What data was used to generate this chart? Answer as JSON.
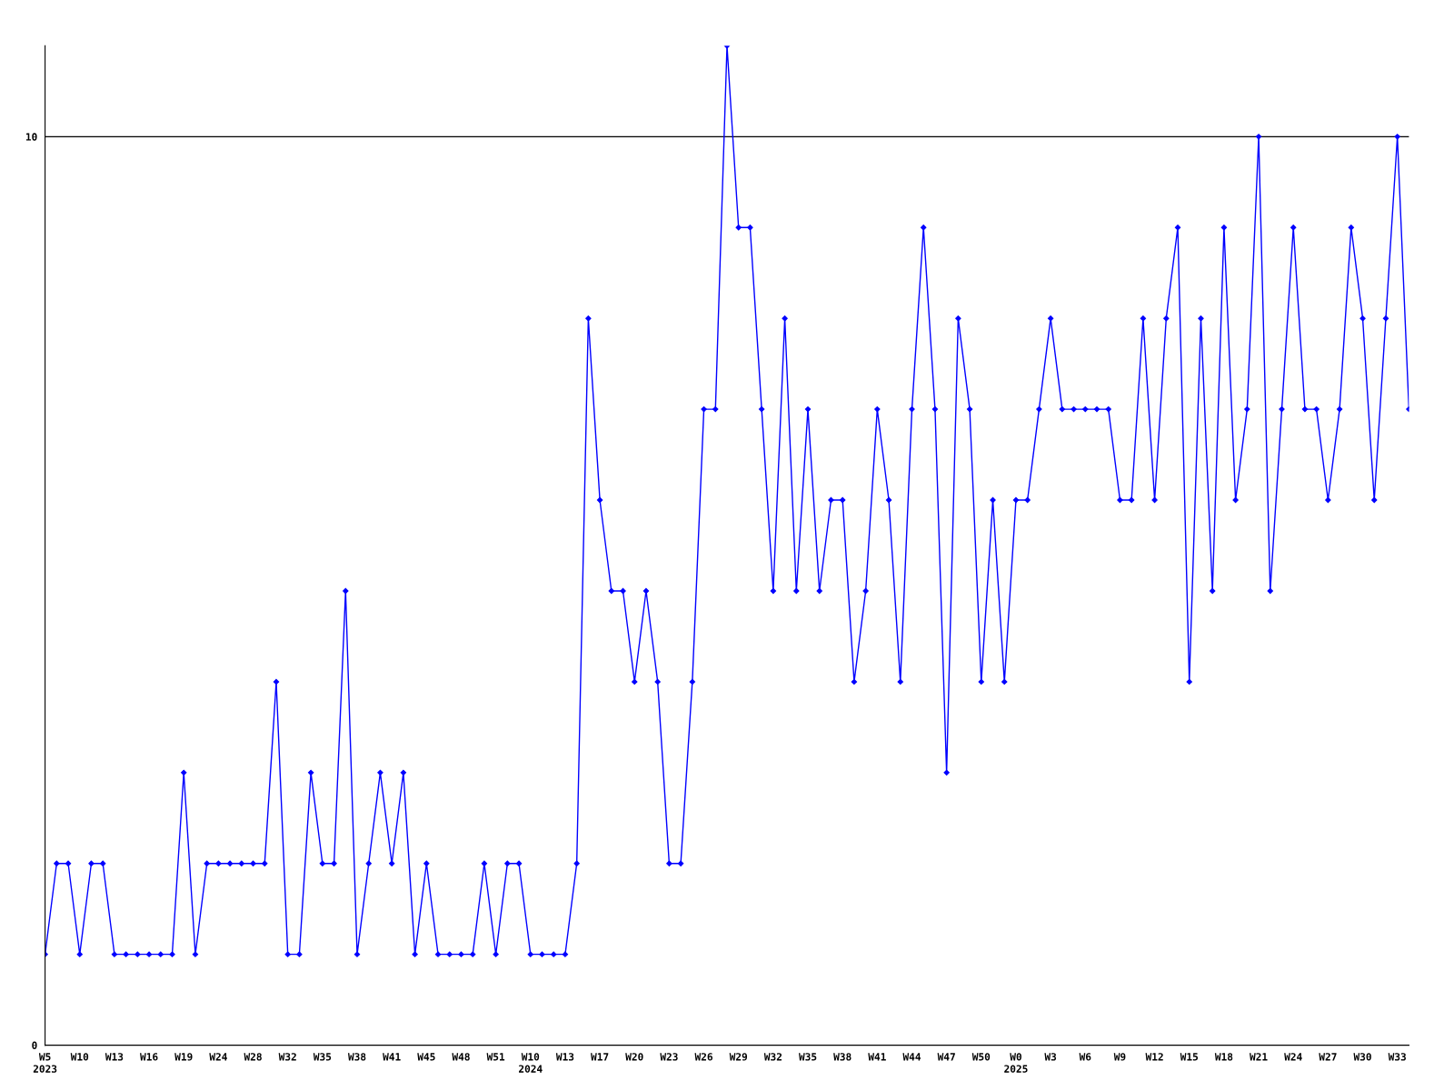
{
  "chart_data": {
    "type": "line",
    "categories": [
      "W5\n2023",
      null,
      null,
      "W10",
      null,
      null,
      "W13",
      null,
      null,
      "W16",
      null,
      null,
      "W19",
      null,
      null,
      "W24",
      null,
      null,
      "W28",
      null,
      null,
      "W32",
      null,
      null,
      "W35",
      null,
      null,
      "W38",
      null,
      null,
      "W41",
      null,
      null,
      "W45",
      null,
      null,
      "W48",
      null,
      null,
      "W51",
      null,
      null,
      "W10\n2024",
      null,
      null,
      "W13",
      null,
      null,
      "W17",
      null,
      null,
      "W20",
      null,
      null,
      "W23",
      null,
      null,
      "W26",
      null,
      null,
      "W29",
      null,
      null,
      "W32",
      null,
      null,
      "W35",
      null,
      null,
      "W38",
      null,
      null,
      "W41",
      null,
      null,
      "W44",
      null,
      null,
      "W47",
      null,
      null,
      "W50",
      null,
      null,
      "W0\n2025",
      null,
      null,
      "W3",
      null,
      null,
      "W6",
      null,
      null,
      "W9",
      null,
      null,
      "W12",
      null,
      null,
      "W15",
      null,
      null,
      "W18",
      null,
      null,
      "W21",
      null,
      null,
      "W24",
      null,
      null,
      "W27",
      null,
      null,
      "W30",
      null,
      null,
      "W33",
      null
    ],
    "series": [
      {
        "color": "#0000ff",
        "values": [
          1,
          2,
          2,
          1,
          2,
          2,
          1,
          1,
          1,
          1,
          1,
          1,
          3,
          1,
          2,
          2,
          2,
          2,
          2,
          2,
          4,
          1,
          1,
          3,
          2,
          2,
          5,
          1,
          2,
          3,
          2,
          3,
          1,
          2,
          1,
          1,
          1,
          1,
          2,
          1,
          2,
          2,
          1,
          1,
          1,
          1,
          2,
          8,
          6,
          5,
          5,
          4,
          5,
          4,
          2,
          2,
          4,
          7,
          7,
          11,
          9,
          9,
          7,
          5,
          8,
          5,
          7,
          5,
          6,
          6,
          4,
          5,
          7,
          6,
          4,
          7,
          9,
          7,
          3,
          8,
          7,
          4,
          6,
          4,
          6,
          6,
          7,
          8,
          7,
          7,
          7,
          7,
          7,
          6,
          6,
          8,
          6,
          8,
          9,
          4,
          8,
          5,
          9,
          6,
          7,
          10,
          5,
          7,
          9,
          7,
          7,
          6,
          7,
          9,
          8,
          6,
          8,
          10,
          7
        ]
      }
    ],
    "ylim": [
      0,
      11
    ],
    "yticks": [
      0,
      10
    ],
    "grid": "y",
    "marker": "diamond",
    "line_style": "solid",
    "legend": false
  }
}
